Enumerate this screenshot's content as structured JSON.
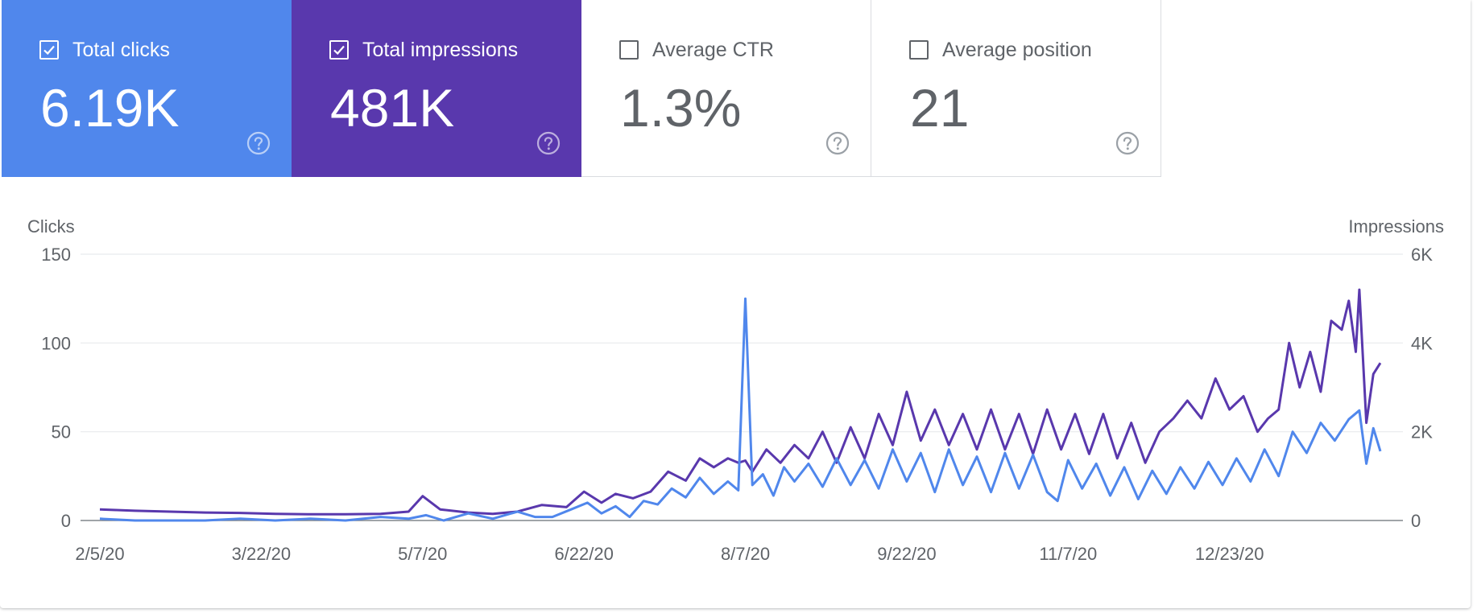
{
  "metrics": [
    {
      "label": "Total clicks",
      "value": "6.19K",
      "checked": true,
      "color": "#5087ec"
    },
    {
      "label": "Total impressions",
      "value": "481K",
      "checked": true,
      "color": "#5938ad"
    },
    {
      "label": "Average CTR",
      "value": "1.3%",
      "checked": false,
      "color": "#ffffff"
    },
    {
      "label": "Average position",
      "value": "21",
      "checked": false,
      "color": "#ffffff"
    }
  ],
  "icons": {
    "checkbox": "checkbox-icon",
    "help": "help-circle-icon"
  },
  "chart_data": {
    "type": "line",
    "left_axis_label": "Clicks",
    "right_axis_label": "Impressions",
    "left_ticks": [
      "0",
      "50",
      "100",
      "150"
    ],
    "left_tick_values": [
      0,
      50,
      100,
      150
    ],
    "right_ticks": [
      "0",
      "2K",
      "4K",
      "6K"
    ],
    "right_tick_values": [
      0,
      2000,
      4000,
      6000
    ],
    "ylim_left": [
      0,
      150
    ],
    "ylim_right": [
      0,
      6000
    ],
    "x_tick_labels": [
      "2/5/20",
      "3/22/20",
      "5/7/20",
      "6/22/20",
      "8/7/20",
      "9/22/20",
      "11/7/20",
      "12/23/20"
    ],
    "x_tick_dates": [
      "2020-02-05",
      "2020-03-22",
      "2020-05-07",
      "2020-06-22",
      "2020-08-07",
      "2020-09-22",
      "2020-11-07",
      "2020-12-23"
    ],
    "x_range": [
      "2020-02-05",
      "2021-02-04"
    ],
    "grid": true,
    "series": [
      {
        "name": "Total clicks",
        "axis": "left",
        "color": "#5087ec",
        "points": [
          [
            "2020-02-05",
            1
          ],
          [
            "2020-02-15",
            0
          ],
          [
            "2020-02-25",
            0
          ],
          [
            "2020-03-06",
            0
          ],
          [
            "2020-03-16",
            1
          ],
          [
            "2020-03-26",
            0
          ],
          [
            "2020-04-05",
            1
          ],
          [
            "2020-04-15",
            0
          ],
          [
            "2020-04-25",
            2
          ],
          [
            "2020-05-03",
            1
          ],
          [
            "2020-05-08",
            3
          ],
          [
            "2020-05-13",
            0
          ],
          [
            "2020-05-20",
            4
          ],
          [
            "2020-05-27",
            1
          ],
          [
            "2020-06-03",
            5
          ],
          [
            "2020-06-08",
            2
          ],
          [
            "2020-06-13",
            2
          ],
          [
            "2020-06-18",
            6
          ],
          [
            "2020-06-23",
            10
          ],
          [
            "2020-06-27",
            4
          ],
          [
            "2020-07-01",
            8
          ],
          [
            "2020-07-05",
            2
          ],
          [
            "2020-07-09",
            11
          ],
          [
            "2020-07-13",
            9
          ],
          [
            "2020-07-17",
            18
          ],
          [
            "2020-07-21",
            13
          ],
          [
            "2020-07-25",
            24
          ],
          [
            "2020-07-29",
            15
          ],
          [
            "2020-08-02",
            22
          ],
          [
            "2020-08-05",
            17
          ],
          [
            "2020-08-07",
            125
          ],
          [
            "2020-08-09",
            20
          ],
          [
            "2020-08-12",
            26
          ],
          [
            "2020-08-15",
            14
          ],
          [
            "2020-08-18",
            30
          ],
          [
            "2020-08-21",
            22
          ],
          [
            "2020-08-25",
            32
          ],
          [
            "2020-08-29",
            19
          ],
          [
            "2020-09-02",
            35
          ],
          [
            "2020-09-06",
            20
          ],
          [
            "2020-09-10",
            34
          ],
          [
            "2020-09-14",
            18
          ],
          [
            "2020-09-18",
            40
          ],
          [
            "2020-09-22",
            22
          ],
          [
            "2020-09-26",
            38
          ],
          [
            "2020-09-30",
            16
          ],
          [
            "2020-10-04",
            40
          ],
          [
            "2020-10-08",
            20
          ],
          [
            "2020-10-12",
            36
          ],
          [
            "2020-10-16",
            16
          ],
          [
            "2020-10-20",
            38
          ],
          [
            "2020-10-24",
            18
          ],
          [
            "2020-10-28",
            37
          ],
          [
            "2020-11-01",
            16
          ],
          [
            "2020-11-04",
            11
          ],
          [
            "2020-11-07",
            34
          ],
          [
            "2020-11-11",
            18
          ],
          [
            "2020-11-15",
            32
          ],
          [
            "2020-11-19",
            14
          ],
          [
            "2020-11-23",
            30
          ],
          [
            "2020-11-27",
            12
          ],
          [
            "2020-12-01",
            28
          ],
          [
            "2020-12-05",
            15
          ],
          [
            "2020-12-09",
            30
          ],
          [
            "2020-12-13",
            18
          ],
          [
            "2020-12-17",
            33
          ],
          [
            "2020-12-21",
            20
          ],
          [
            "2020-12-25",
            35
          ],
          [
            "2020-12-29",
            22
          ],
          [
            "2021-01-02",
            40
          ],
          [
            "2021-01-06",
            25
          ],
          [
            "2021-01-10",
            50
          ],
          [
            "2021-01-14",
            38
          ],
          [
            "2021-01-18",
            55
          ],
          [
            "2021-01-22",
            45
          ],
          [
            "2021-01-26",
            57
          ],
          [
            "2021-01-29",
            62
          ],
          [
            "2021-01-31",
            32
          ],
          [
            "2021-02-02",
            52
          ],
          [
            "2021-02-04",
            39
          ]
        ]
      },
      {
        "name": "Total impressions",
        "axis": "right",
        "color": "#5938ad",
        "points": [
          [
            "2020-02-05",
            250
          ],
          [
            "2020-02-15",
            220
          ],
          [
            "2020-02-25",
            200
          ],
          [
            "2020-03-06",
            180
          ],
          [
            "2020-03-16",
            170
          ],
          [
            "2020-03-26",
            150
          ],
          [
            "2020-04-05",
            140
          ],
          [
            "2020-04-15",
            140
          ],
          [
            "2020-04-25",
            150
          ],
          [
            "2020-05-03",
            200
          ],
          [
            "2020-05-07",
            550
          ],
          [
            "2020-05-12",
            250
          ],
          [
            "2020-05-20",
            180
          ],
          [
            "2020-05-27",
            150
          ],
          [
            "2020-06-03",
            200
          ],
          [
            "2020-06-10",
            350
          ],
          [
            "2020-06-17",
            300
          ],
          [
            "2020-06-22",
            650
          ],
          [
            "2020-06-27",
            400
          ],
          [
            "2020-07-01",
            600
          ],
          [
            "2020-07-06",
            500
          ],
          [
            "2020-07-11",
            650
          ],
          [
            "2020-07-16",
            1100
          ],
          [
            "2020-07-21",
            900
          ],
          [
            "2020-07-25",
            1400
          ],
          [
            "2020-07-29",
            1200
          ],
          [
            "2020-08-02",
            1400
          ],
          [
            "2020-08-05",
            1300
          ],
          [
            "2020-08-07",
            1350
          ],
          [
            "2020-08-09",
            1100
          ],
          [
            "2020-08-13",
            1600
          ],
          [
            "2020-08-17",
            1300
          ],
          [
            "2020-08-21",
            1700
          ],
          [
            "2020-08-25",
            1400
          ],
          [
            "2020-08-29",
            2000
          ],
          [
            "2020-09-02",
            1300
          ],
          [
            "2020-09-06",
            2100
          ],
          [
            "2020-09-10",
            1400
          ],
          [
            "2020-09-14",
            2400
          ],
          [
            "2020-09-18",
            1700
          ],
          [
            "2020-09-22",
            2900
          ],
          [
            "2020-09-26",
            1800
          ],
          [
            "2020-09-30",
            2500
          ],
          [
            "2020-10-04",
            1700
          ],
          [
            "2020-10-08",
            2400
          ],
          [
            "2020-10-12",
            1600
          ],
          [
            "2020-10-16",
            2500
          ],
          [
            "2020-10-20",
            1600
          ],
          [
            "2020-10-24",
            2400
          ],
          [
            "2020-10-28",
            1500
          ],
          [
            "2020-11-01",
            2500
          ],
          [
            "2020-11-05",
            1600
          ],
          [
            "2020-11-09",
            2400
          ],
          [
            "2020-11-13",
            1500
          ],
          [
            "2020-11-17",
            2400
          ],
          [
            "2020-11-21",
            1400
          ],
          [
            "2020-11-25",
            2200
          ],
          [
            "2020-11-29",
            1300
          ],
          [
            "2020-12-03",
            2000
          ],
          [
            "2020-12-07",
            2300
          ],
          [
            "2020-12-11",
            2700
          ],
          [
            "2020-12-15",
            2300
          ],
          [
            "2020-12-19",
            3200
          ],
          [
            "2020-12-23",
            2500
          ],
          [
            "2020-12-27",
            2800
          ],
          [
            "2020-12-31",
            2000
          ],
          [
            "2021-01-03",
            2300
          ],
          [
            "2021-01-06",
            2500
          ],
          [
            "2021-01-09",
            4000
          ],
          [
            "2021-01-12",
            3000
          ],
          [
            "2021-01-15",
            3800
          ],
          [
            "2021-01-18",
            2900
          ],
          [
            "2021-01-21",
            4500
          ],
          [
            "2021-01-24",
            4300
          ],
          [
            "2021-01-26",
            4950
          ],
          [
            "2021-01-28",
            3800
          ],
          [
            "2021-01-29",
            5200
          ],
          [
            "2021-01-31",
            2200
          ],
          [
            "2021-02-02",
            3300
          ],
          [
            "2021-02-04",
            3550
          ]
        ]
      }
    ]
  }
}
